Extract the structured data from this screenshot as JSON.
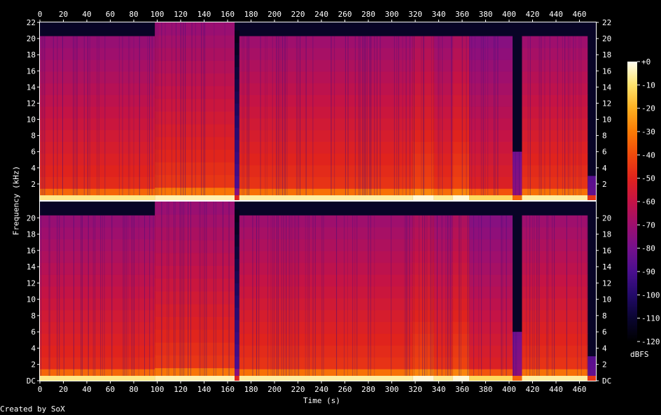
{
  "chart_data": {
    "type": "heatmap",
    "xlabel": "Time (s)",
    "ylabel": "Frequency (kHz)",
    "x_ticks": [
      0,
      20,
      40,
      60,
      80,
      100,
      120,
      140,
      160,
      180,
      200,
      220,
      240,
      260,
      280,
      300,
      320,
      340,
      360,
      380,
      400,
      420,
      440,
      460
    ],
    "xlim": [
      0,
      474
    ],
    "channels": [
      {
        "y_ticks": [
          "2",
          "4",
          "6",
          "8",
          "10",
          "12",
          "14",
          "16",
          "18",
          "20",
          "22"
        ],
        "ylim": [
          0,
          22
        ]
      },
      {
        "y_ticks": [
          "DC",
          "2",
          "4",
          "6",
          "8",
          "10",
          "12",
          "14",
          "16",
          "18",
          "20"
        ],
        "ylim": [
          0,
          22
        ]
      }
    ],
    "colorbar": {
      "label": "dBFS",
      "ticks": [
        "+0",
        "-10",
        "-20",
        "-30",
        "-40",
        "-50",
        "-60",
        "-70",
        "-80",
        "-90",
        "-100",
        "-110",
        "-120"
      ],
      "range": [
        -120,
        0
      ],
      "colors": [
        "#000000",
        "#0a0530",
        "#230a6a",
        "#4a0f8e",
        "#75108d",
        "#9e0f6e",
        "#c41346",
        "#e0231d",
        "#f14a0c",
        "#fa7b05",
        "#fdb021",
        "#fee36d",
        "#fffef0"
      ]
    },
    "segments": [
      {
        "start": 0,
        "end": 98,
        "cutoff_khz": 20.3,
        "level": -58
      },
      {
        "start": 98,
        "end": 166,
        "cutoff_khz": 22,
        "level": -55
      },
      {
        "start": 166,
        "end": 170,
        "cutoff_khz": 21,
        "level": -100
      },
      {
        "start": 170,
        "end": 318,
        "cutoff_khz": 20.3,
        "level": -56
      },
      {
        "start": 318,
        "end": 336,
        "cutoff_khz": 20.3,
        "level": -52
      },
      {
        "start": 336,
        "end": 352,
        "cutoff_khz": 20.3,
        "level": -57
      },
      {
        "start": 352,
        "end": 366,
        "cutoff_khz": 20.3,
        "level": -52
      },
      {
        "start": 366,
        "end": 403,
        "cutoff_khz": 20.3,
        "level": -62
      },
      {
        "start": 403,
        "end": 411,
        "cutoff_khz": 6,
        "level": -85
      },
      {
        "start": 411,
        "end": 467,
        "cutoff_khz": 20.3,
        "level": -56
      },
      {
        "start": 467,
        "end": 474,
        "cutoff_khz": 3,
        "level": -95
      }
    ]
  },
  "footer": {
    "credit": "Created by SoX"
  }
}
